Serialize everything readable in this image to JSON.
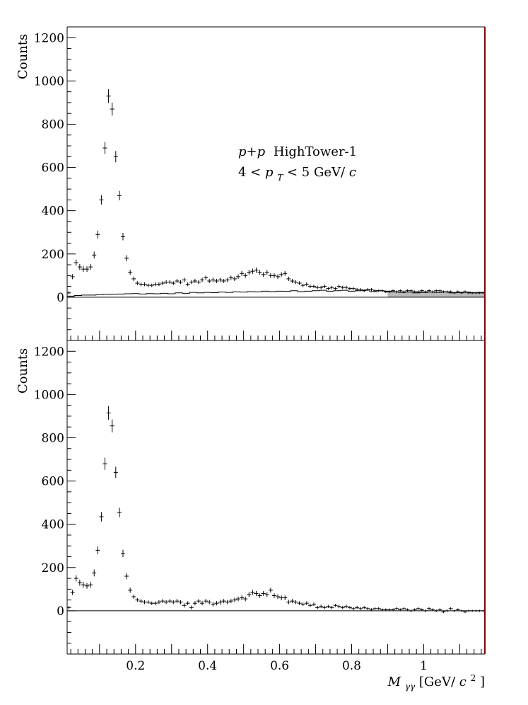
{
  "chart_data": [
    {
      "type": "scatter",
      "panel": "top",
      "title": "",
      "xlabel": "",
      "ylabel": "Counts",
      "xlim": [
        0.01,
        1.17
      ],
      "ylim": [
        -200,
        1250
      ],
      "yticks": [
        "0",
        "200",
        "400",
        "600",
        "800",
        "1000",
        "1200"
      ],
      "xticks": [
        "0.2",
        "0.4",
        "0.6",
        "0.8",
        "1"
      ],
      "grid": false,
      "annotation": {
        "line1_math": "p+p",
        "line1_text": "HighTower-1",
        "line2_pre": "4 < ",
        "line2_p": "p",
        "line2_sub": "T",
        "line2_post": " < 5 GeV/",
        "line2_c": "c"
      },
      "shaded_region_x": [
        0.9,
        1.17
      ],
      "series": [
        {
          "style": "points_with_errors",
          "x": [
            0.015,
            0.025,
            0.035,
            0.045,
            0.055,
            0.065,
            0.075,
            0.085,
            0.095,
            0.105,
            0.115,
            0.125,
            0.135,
            0.145,
            0.155,
            0.165,
            0.175,
            0.185,
            0.195,
            0.205,
            0.215,
            0.225,
            0.235,
            0.245,
            0.255,
            0.265,
            0.275,
            0.285,
            0.295,
            0.305,
            0.315,
            0.325,
            0.335,
            0.345,
            0.355,
            0.365,
            0.375,
            0.385,
            0.395,
            0.405,
            0.415,
            0.425,
            0.435,
            0.445,
            0.455,
            0.465,
            0.475,
            0.485,
            0.495,
            0.505,
            0.515,
            0.525,
            0.535,
            0.545,
            0.555,
            0.565,
            0.575,
            0.585,
            0.595,
            0.605,
            0.615,
            0.625,
            0.635,
            0.645,
            0.655,
            0.665,
            0.675,
            0.685,
            0.695,
            0.705,
            0.715,
            0.725,
            0.735,
            0.745,
            0.755,
            0.765,
            0.775,
            0.785,
            0.795,
            0.805,
            0.815,
            0.825,
            0.835,
            0.845,
            0.855,
            0.865,
            0.875,
            0.885,
            0.895,
            0.905,
            0.915,
            0.925,
            0.935,
            0.945,
            0.955,
            0.965,
            0.975,
            0.985,
            0.995,
            1.005,
            1.015,
            1.025,
            1.035,
            1.045,
            1.055,
            1.065,
            1.075,
            1.085,
            1.095,
            1.105,
            1.115,
            1.125,
            1.135,
            1.145,
            1.155,
            1.165
          ],
          "y": [
            20,
            95,
            160,
            140,
            130,
            130,
            140,
            195,
            290,
            450,
            690,
            930,
            870,
            650,
            470,
            280,
            180,
            115,
            85,
            65,
            60,
            60,
            55,
            55,
            60,
            60,
            65,
            70,
            70,
            65,
            75,
            70,
            80,
            60,
            70,
            75,
            70,
            80,
            90,
            75,
            80,
            75,
            80,
            75,
            80,
            90,
            85,
            95,
            110,
            100,
            115,
            120,
            125,
            115,
            105,
            115,
            100,
            100,
            95,
            105,
            110,
            85,
            75,
            70,
            65,
            55,
            60,
            50,
            50,
            45,
            45,
            50,
            40,
            45,
            40,
            50,
            45,
            45,
            40,
            40,
            35,
            35,
            30,
            35,
            35,
            30,
            30,
            30,
            25,
            25,
            30,
            25,
            30,
            25,
            30,
            30,
            25,
            25,
            30,
            25,
            30,
            25,
            30,
            30,
            25,
            25,
            25,
            20,
            25,
            20,
            25,
            20,
            20,
            20,
            20,
            20
          ],
          "yerr": [
            8,
            12,
            14,
            14,
            13,
            13,
            14,
            16,
            18,
            22,
            28,
            32,
            30,
            26,
            22,
            17,
            14,
            12,
            10,
            9,
            9,
            9,
            8,
            8,
            9,
            9,
            9,
            9,
            9,
            9,
            10,
            9,
            10,
            9,
            9,
            10,
            9,
            10,
            10,
            10,
            10,
            10,
            10,
            10,
            10,
            10,
            10,
            11,
            11,
            11,
            11,
            12,
            12,
            11,
            11,
            11,
            11,
            11,
            11,
            11,
            11,
            10,
            10,
            9,
            9,
            8,
            9,
            8,
            8,
            8,
            8,
            8,
            7,
            8,
            7,
            8,
            8,
            8,
            7,
            7,
            7,
            7,
            6,
            7,
            7,
            6,
            6,
            6,
            6,
            6,
            6,
            6,
            6,
            6,
            6,
            6,
            6,
            6,
            6,
            6,
            6,
            6,
            6,
            6,
            6,
            6,
            6,
            5,
            6,
            5,
            6,
            5,
            5,
            5,
            5,
            5
          ]
        },
        {
          "style": "histogram_step",
          "bin_edges": [
            0.01,
            0.03,
            0.05,
            0.07,
            0.09,
            0.11,
            0.13,
            0.15,
            0.17,
            0.19,
            0.21,
            0.23,
            0.25,
            0.27,
            0.29,
            0.31,
            0.33,
            0.35,
            0.37,
            0.39,
            0.41,
            0.43,
            0.45,
            0.47,
            0.49,
            0.51,
            0.53,
            0.55,
            0.57,
            0.59,
            0.61,
            0.63,
            0.65,
            0.67,
            0.69,
            0.71,
            0.73,
            0.75,
            0.77,
            0.79,
            0.81,
            0.83,
            0.85,
            0.87,
            0.89,
            0.91,
            0.93,
            0.95,
            0.97,
            0.99,
            1.01,
            1.03,
            1.05,
            1.07,
            1.09,
            1.11,
            1.13,
            1.15,
            1.17
          ],
          "values": [
            5,
            8,
            10,
            10,
            12,
            13,
            14,
            15,
            16,
            17,
            15,
            17,
            16,
            18,
            16,
            20,
            18,
            22,
            20,
            22,
            21,
            24,
            22,
            25,
            24,
            26,
            25,
            28,
            26,
            28,
            27,
            30,
            26,
            28,
            30,
            32,
            28,
            30,
            32,
            28,
            30,
            33,
            26,
            30,
            28,
            25,
            22,
            24,
            20,
            22,
            24,
            22,
            25,
            20,
            22,
            24,
            20,
            22
          ]
        }
      ]
    },
    {
      "type": "scatter",
      "panel": "bottom",
      "title": "",
      "xlabel_math": "M",
      "xlabel_sub": "γγ",
      "xlabel_unit": " [GeV/",
      "xlabel_c": "c",
      "xlabel_sup": "2",
      "xlabel_close": "]",
      "ylabel": "Counts",
      "xlim": [
        0.01,
        1.17
      ],
      "ylim": [
        -200,
        1250
      ],
      "yticks": [
        "0",
        "200",
        "400",
        "600",
        "800",
        "1000",
        "1200"
      ],
      "xticks": [
        "0.2",
        "0.4",
        "0.6",
        "0.8",
        "1"
      ],
      "grid": false,
      "series": [
        {
          "style": "points_with_errors",
          "x": [
            0.015,
            0.025,
            0.035,
            0.045,
            0.055,
            0.065,
            0.075,
            0.085,
            0.095,
            0.105,
            0.115,
            0.125,
            0.135,
            0.145,
            0.155,
            0.165,
            0.175,
            0.185,
            0.195,
            0.205,
            0.215,
            0.225,
            0.235,
            0.245,
            0.255,
            0.265,
            0.275,
            0.285,
            0.295,
            0.305,
            0.315,
            0.325,
            0.335,
            0.345,
            0.355,
            0.365,
            0.375,
            0.385,
            0.395,
            0.405,
            0.415,
            0.425,
            0.435,
            0.445,
            0.455,
            0.465,
            0.475,
            0.485,
            0.495,
            0.505,
            0.515,
            0.525,
            0.535,
            0.545,
            0.555,
            0.565,
            0.575,
            0.585,
            0.595,
            0.605,
            0.615,
            0.625,
            0.635,
            0.645,
            0.655,
            0.665,
            0.675,
            0.685,
            0.695,
            0.705,
            0.715,
            0.725,
            0.735,
            0.745,
            0.755,
            0.765,
            0.775,
            0.785,
            0.795,
            0.805,
            0.815,
            0.825,
            0.835,
            0.845,
            0.855,
            0.865,
            0.875,
            0.885,
            0.895,
            0.905,
            0.915,
            0.925,
            0.935,
            0.945,
            0.955,
            0.965,
            0.975,
            0.985,
            0.995,
            1.005,
            1.015,
            1.025,
            1.035,
            1.045,
            1.055,
            1.065,
            1.075,
            1.085,
            1.095,
            1.105,
            1.115,
            1.125,
            1.135,
            1.145,
            1.155,
            1.165
          ],
          "y": [
            15,
            85,
            150,
            130,
            120,
            115,
            120,
            175,
            280,
            435,
            680,
            915,
            855,
            640,
            455,
            265,
            160,
            95,
            65,
            50,
            45,
            40,
            40,
            35,
            35,
            40,
            45,
            40,
            45,
            40,
            45,
            40,
            25,
            35,
            15,
            35,
            45,
            35,
            45,
            40,
            30,
            35,
            40,
            45,
            40,
            45,
            50,
            55,
            60,
            55,
            75,
            85,
            80,
            70,
            80,
            75,
            95,
            70,
            65,
            60,
            60,
            40,
            45,
            40,
            35,
            30,
            35,
            25,
            30,
            15,
            20,
            15,
            20,
            15,
            25,
            20,
            15,
            20,
            15,
            10,
            15,
            10,
            15,
            10,
            5,
            10,
            10,
            5,
            5,
            5,
            5,
            10,
            5,
            10,
            5,
            0,
            5,
            10,
            5,
            0,
            10,
            5,
            0,
            5,
            -5,
            0,
            10,
            0,
            5,
            0,
            -5,
            0,
            0,
            0,
            0,
            0
          ],
          "yerr": [
            8,
            12,
            14,
            14,
            13,
            13,
            14,
            16,
            18,
            22,
            28,
            32,
            30,
            26,
            22,
            17,
            14,
            12,
            10,
            9,
            9,
            9,
            8,
            8,
            9,
            9,
            9,
            9,
            9,
            9,
            10,
            9,
            10,
            9,
            9,
            10,
            9,
            10,
            10,
            10,
            10,
            10,
            10,
            10,
            10,
            10,
            10,
            11,
            11,
            11,
            11,
            12,
            12,
            11,
            11,
            11,
            11,
            11,
            11,
            11,
            11,
            10,
            10,
            9,
            9,
            8,
            9,
            8,
            8,
            8,
            8,
            8,
            7,
            8,
            7,
            8,
            8,
            8,
            7,
            7,
            7,
            7,
            6,
            7,
            7,
            6,
            6,
            6,
            6,
            6,
            6,
            6,
            6,
            6,
            6,
            6,
            6,
            6,
            6,
            6,
            6,
            6,
            6,
            6,
            6,
            6,
            6,
            5,
            6,
            5,
            6,
            5,
            5,
            5,
            5,
            5
          ]
        }
      ]
    }
  ],
  "colors": {
    "frame_right": "#8b0000",
    "shade": "#bbbbbb",
    "ink": "#000000"
  }
}
